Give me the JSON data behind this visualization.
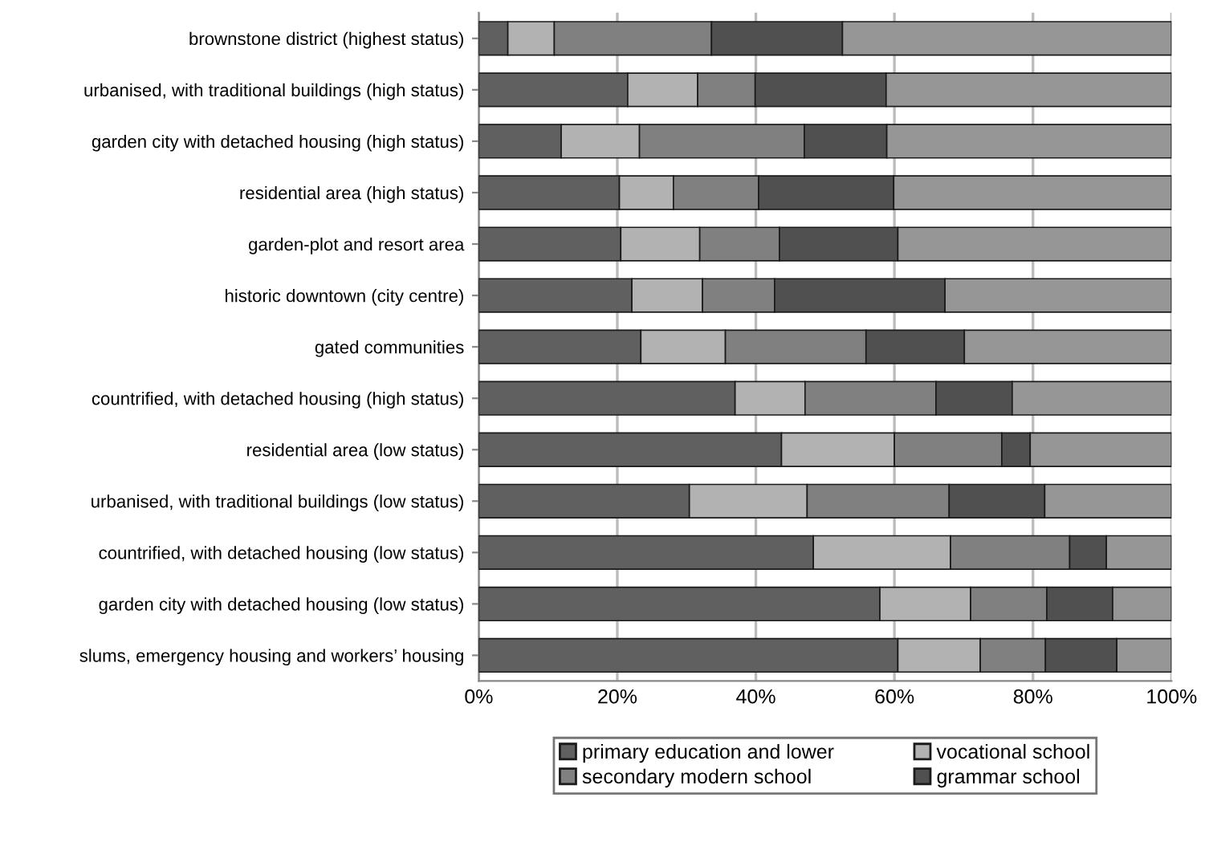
{
  "chart_data": {
    "type": "bar",
    "orientation": "horizontal",
    "stacked": true,
    "categories": [
      "brownstone district (highest status)",
      "urbanised, with traditional buildings (high status)",
      "garden city with detached housing (high status)",
      "residential area (high status)",
      "garden-plot and resort area",
      "historic downtown (city centre)",
      "gated communities",
      "countrified, with detached housing (high status)",
      "residential area (low status)",
      "urbanised, with traditional buildings (low status)",
      "countrified, with detached housing (low status)",
      "garden city with detached housing (low status)",
      "slums, emergency housing and workers’ housing"
    ],
    "series": [
      {
        "name": "primary education and lower",
        "color": "#606060",
        "values": [
          4.2,
          21.5,
          11.9,
          20.3,
          20.5,
          22.1,
          23.4,
          37.0,
          43.7,
          30.4,
          48.3,
          57.9,
          60.5
        ]
      },
      {
        "name": "vocational school",
        "color": "#b2b2b2",
        "values": [
          6.7,
          10.1,
          11.3,
          7.8,
          11.4,
          10.2,
          12.2,
          10.1,
          16.3,
          17.0,
          19.8,
          13.1,
          11.9
        ]
      },
      {
        "name": "secondary modern school",
        "color": "#808080",
        "values": [
          22.7,
          8.3,
          23.8,
          12.3,
          11.5,
          10.4,
          20.3,
          18.9,
          15.5,
          20.5,
          17.2,
          11.0,
          9.4
        ]
      },
      {
        "name": "grammar school",
        "color": "#505050",
        "values": [
          18.9,
          18.9,
          11.9,
          19.5,
          17.1,
          24.6,
          14.2,
          11.0,
          4.1,
          13.8,
          5.3,
          9.5,
          10.3
        ]
      },
      {
        "color": "#969696",
        "values": [
          47.5,
          41.2,
          41.1,
          40.1,
          39.5,
          32.7,
          29.9,
          23.0,
          20.4,
          18.3,
          9.4,
          8.5,
          7.9
        ]
      }
    ],
    "xlim": [
      0,
      100
    ],
    "xticks": [
      {
        "value": 0,
        "label": "0%"
      },
      {
        "value": 20,
        "label": "20%"
      },
      {
        "value": 40,
        "label": "40%"
      },
      {
        "value": 60,
        "label": "60%"
      },
      {
        "value": 80,
        "label": "80%"
      },
      {
        "value": 100,
        "label": "100%"
      }
    ],
    "grid": "x",
    "legend": "bottom"
  }
}
